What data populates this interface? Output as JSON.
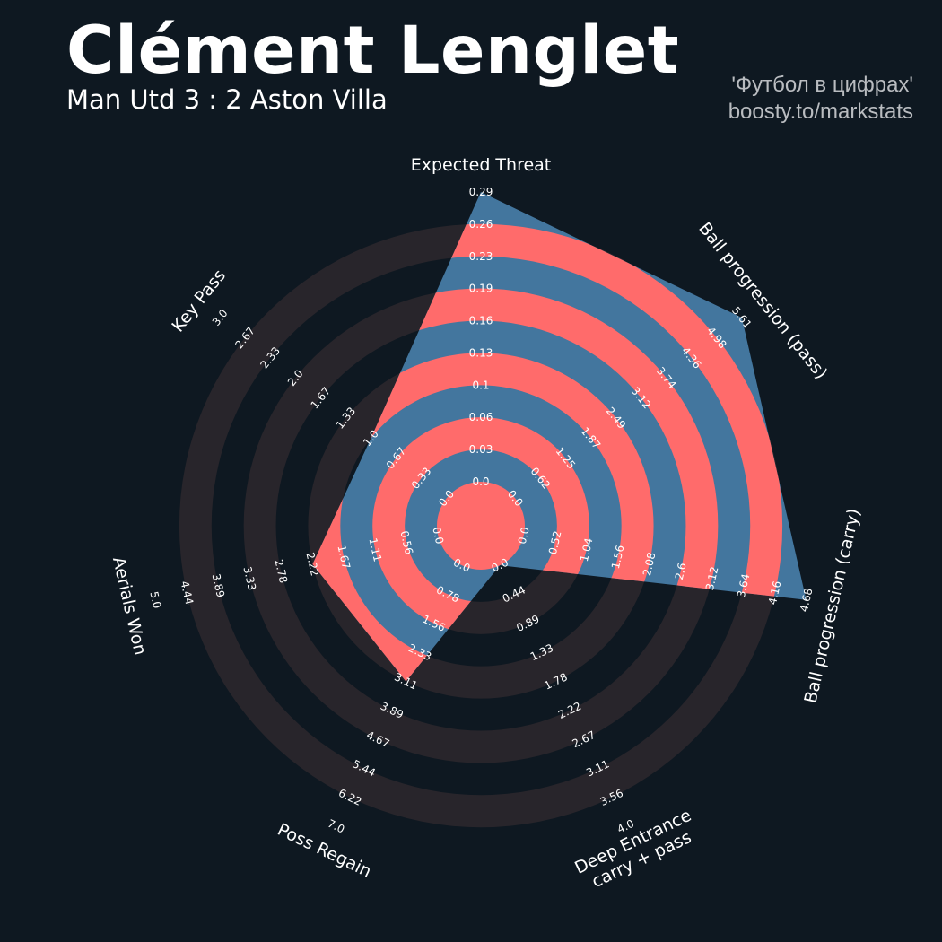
{
  "header": {
    "title": "Clément Lenglet",
    "subtitle": "Man Utd 3 : 2 Aston Villa",
    "credit_line1": "'Футбол в цифрах'",
    "credit_line2": "boosty.to/markstats"
  },
  "colors": {
    "background": "#0e1821",
    "ring_shade": "#28252b",
    "fill_blue": "#43769e",
    "fill_red": "#ff6b6b",
    "label": "#ffffff"
  },
  "chart_data": {
    "type": "radar",
    "title": "Clément Lenglet",
    "subtitle": "Man Utd 3 : 2 Aston Villa",
    "axes": [
      {
        "name": "Expected Threat",
        "lines": [
          "Expected Threat"
        ],
        "min": 0,
        "max": 0.29,
        "value": 0.29,
        "ticks": [
          "0.0",
          "0.03",
          "0.06",
          "0.1",
          "0.13",
          "0.16",
          "0.19",
          "0.23",
          "0.26",
          "0.29"
        ]
      },
      {
        "name": "Ball progression (pass)",
        "lines": [
          "Ball progression (pass)"
        ],
        "min": 0,
        "max": 5.61,
        "value": 5.61,
        "ticks": [
          "0.0",
          "0.62",
          "1.25",
          "1.87",
          "2.49",
          "3.12",
          "3.74",
          "4.36",
          "4.98",
          "5.61"
        ]
      },
      {
        "name": "Ball progression (carry)",
        "lines": [
          "Ball progression (carry)"
        ],
        "min": 0,
        "max": 4.68,
        "value": 4.68,
        "ticks": [
          "0.0",
          "0.52",
          "1.04",
          "1.56",
          "2.08",
          "2.6",
          "3.12",
          "3.64",
          "4.16",
          "4.68"
        ]
      },
      {
        "name": "Deep Entrance carry + pass",
        "lines": [
          "Deep Entrance",
          "carry + pass"
        ],
        "min": 0,
        "max": 4.0,
        "value": 0.0,
        "ticks": [
          "0.0",
          "0.44",
          "0.89",
          "1.33",
          "1.78",
          "2.22",
          "2.67",
          "3.11",
          "3.56",
          "4.0"
        ]
      },
      {
        "name": "Poss Regain",
        "lines": [
          "Poss Regain"
        ],
        "min": 0,
        "max": 7.0,
        "value": 3.11,
        "ticks": [
          "0.0",
          "0.78",
          "1.56",
          "2.33",
          "3.11",
          "3.89",
          "4.67",
          "5.44",
          "6.22",
          "7.0"
        ]
      },
      {
        "name": "Aerials Won",
        "lines": [
          "Aerials Won"
        ],
        "min": 0,
        "max": 5.0,
        "value": 2.22,
        "ticks": [
          "0.0",
          "0.56",
          "1.11",
          "1.67",
          "2.22",
          "2.78",
          "3.33",
          "3.89",
          "4.44",
          "5.0"
        ]
      },
      {
        "name": "Key Pass",
        "lines": [
          "Key Pass"
        ],
        "min": 0,
        "max": 3.0,
        "value": 1.0,
        "ticks": [
          "0.0",
          "0.33",
          "0.67",
          "1.0",
          "1.33",
          "1.67",
          "2.0",
          "2.33",
          "2.67",
          "3.0"
        ]
      }
    ],
    "rings": 9,
    "grid": false,
    "legend": "none"
  }
}
